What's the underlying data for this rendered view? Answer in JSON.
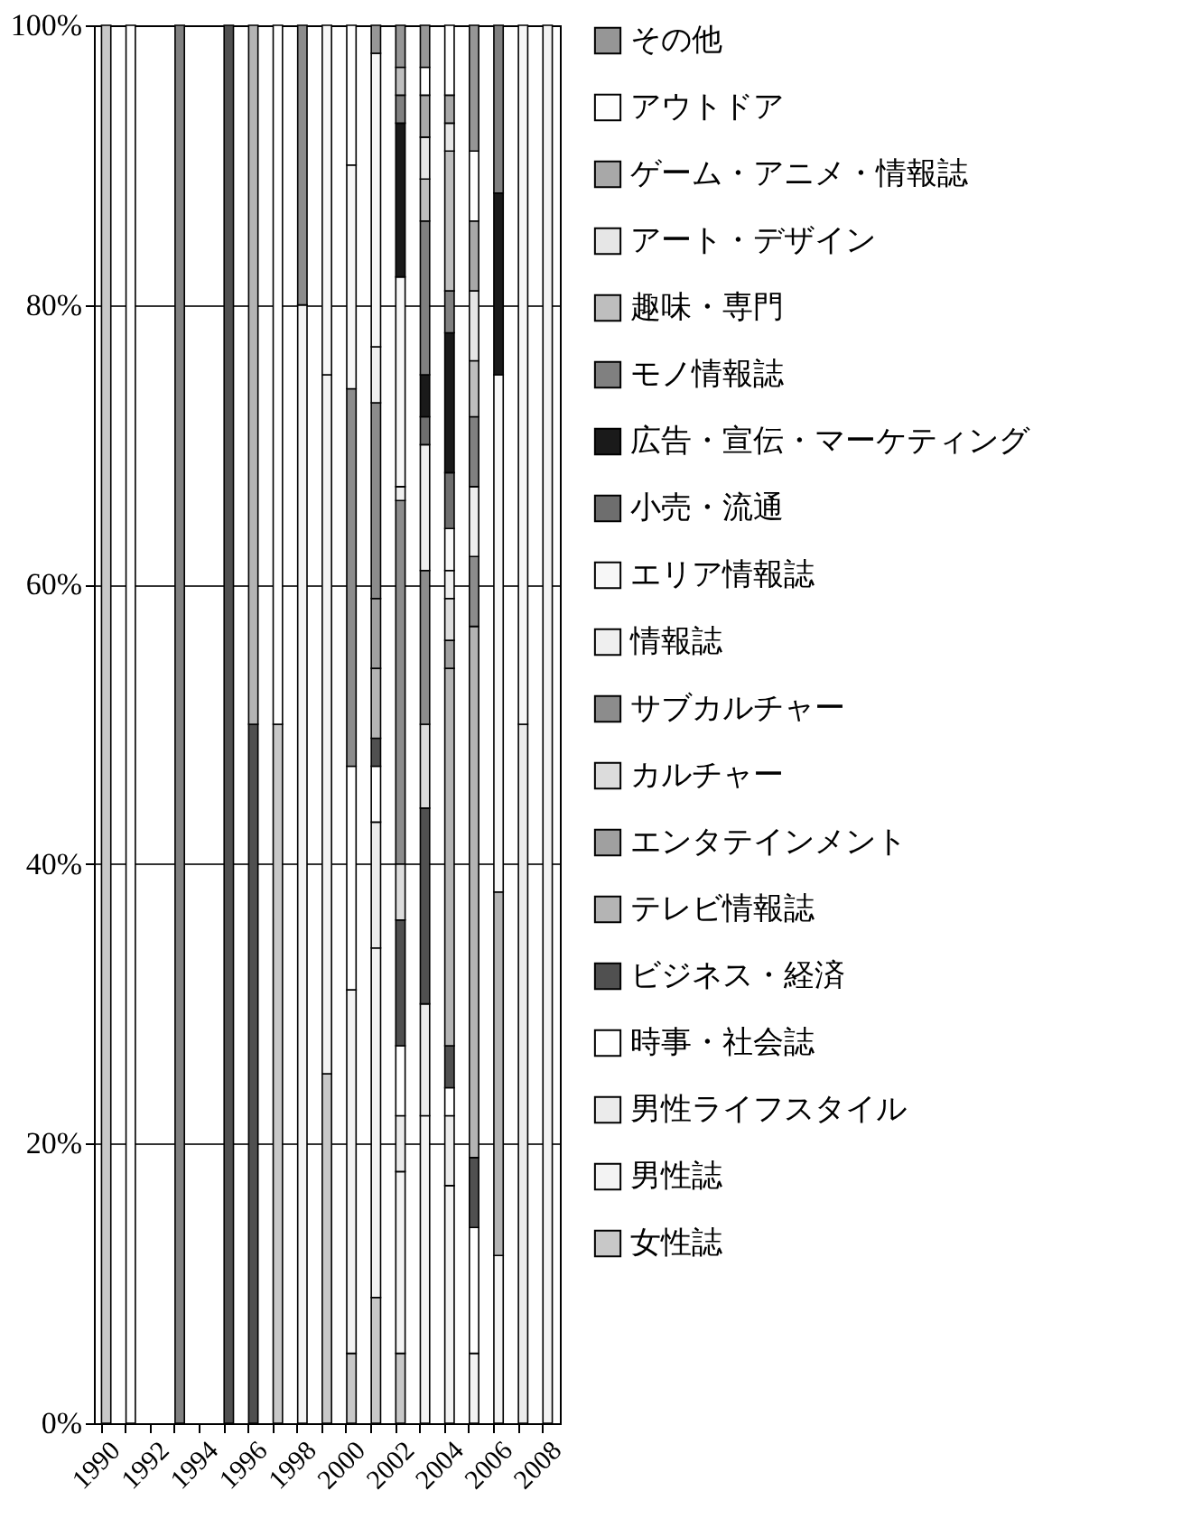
{
  "chart_data": {
    "type": "bar",
    "stacked": true,
    "categories": [
      "1990",
      null,
      "1992",
      null,
      "1994",
      null,
      "1996",
      null,
      "1998",
      null,
      "2000",
      null,
      "2002",
      null,
      "2004",
      null,
      "2006",
      null,
      "2008"
    ],
    "ylim": [
      0,
      100
    ],
    "yticks": [
      {
        "value": 0,
        "label": "0%"
      },
      {
        "value": 20,
        "label": "20%"
      },
      {
        "value": 40,
        "label": "40%"
      },
      {
        "value": 60,
        "label": "60%"
      },
      {
        "value": 80,
        "label": "80%"
      },
      {
        "value": 100,
        "label": "100%"
      }
    ],
    "grid": "y",
    "legend": "right",
    "series": [
      {
        "name": "女性誌",
        "color": "#c8c8c8",
        "values": [
          100,
          null,
          null,
          null,
          null,
          null,
          null,
          50,
          null,
          25,
          5,
          9,
          5,
          null,
          null,
          null,
          null,
          null,
          null
        ]
      },
      {
        "name": "男性誌",
        "color": "#f3f3f3",
        "values": [
          null,
          null,
          null,
          null,
          null,
          null,
          null,
          null,
          80,
          50,
          26,
          25,
          13,
          22,
          17,
          5,
          12,
          null,
          100
        ]
      },
      {
        "name": "男性ライフスタイル",
        "color": "#ebebeb",
        "values": [
          null,
          null,
          null,
          null,
          null,
          null,
          null,
          null,
          null,
          null,
          null,
          9,
          4,
          8,
          5,
          null,
          null,
          50,
          null
        ]
      },
      {
        "name": "時事・社会誌",
        "color": "#ffffff",
        "values": [
          null,
          100,
          null,
          null,
          null,
          null,
          null,
          50,
          null,
          null,
          16,
          4,
          5,
          null,
          2,
          9,
          null,
          null,
          null
        ]
      },
      {
        "name": "ビジネス・経済",
        "color": "#505050",
        "values": [
          null,
          null,
          null,
          null,
          null,
          100,
          50,
          null,
          null,
          null,
          null,
          2,
          9,
          14,
          3,
          5,
          null,
          null,
          null
        ]
      },
      {
        "name": "テレビ情報誌",
        "color": "#b4b4b4",
        "values": [
          null,
          null,
          null,
          null,
          null,
          null,
          50,
          null,
          null,
          null,
          null,
          5,
          null,
          null,
          27,
          38,
          26,
          null,
          null
        ]
      },
      {
        "name": "エンタテインメント",
        "color": "#a0a0a0",
        "values": [
          null,
          null,
          null,
          null,
          null,
          null,
          null,
          null,
          null,
          null,
          null,
          5,
          null,
          null,
          2,
          null,
          null,
          null,
          null
        ]
      },
      {
        "name": "カルチャー",
        "color": "#dcdcdc",
        "values": [
          null,
          null,
          null,
          null,
          null,
          null,
          null,
          null,
          null,
          null,
          null,
          null,
          4,
          6,
          3,
          null,
          null,
          null,
          null
        ]
      },
      {
        "name": "サブカルチャー",
        "color": "#8c8c8c",
        "values": [
          null,
          null,
          null,
          null,
          null,
          null,
          null,
          null,
          20,
          null,
          27,
          14,
          26,
          11,
          null,
          5,
          null,
          null,
          null
        ]
      },
      {
        "name": "情報誌",
        "color": "#efefef",
        "values": [
          null,
          null,
          null,
          null,
          null,
          null,
          null,
          null,
          null,
          null,
          null,
          4,
          1,
          9,
          2,
          5,
          null,
          null,
          null
        ]
      },
      {
        "name": "エリア情報誌",
        "color": "#f7f7f7",
        "values": [
          null,
          null,
          null,
          null,
          null,
          null,
          null,
          null,
          null,
          25,
          16,
          21,
          15,
          null,
          3,
          null,
          37,
          50,
          null
        ]
      },
      {
        "name": "小売・流通",
        "color": "#6e6e6e",
        "values": [
          null,
          null,
          null,
          null,
          null,
          null,
          null,
          null,
          null,
          null,
          null,
          null,
          null,
          2,
          4,
          null,
          null,
          null,
          null
        ]
      },
      {
        "name": "広告・宣伝・マーケティング",
        "color": "#1a1a1a",
        "values": [
          null,
          null,
          null,
          null,
          null,
          null,
          null,
          null,
          null,
          null,
          null,
          null,
          11,
          3,
          10,
          null,
          13,
          null,
          null
        ]
      },
      {
        "name": "モノ情報誌",
        "color": "#808080",
        "values": [
          null,
          null,
          null,
          100,
          null,
          null,
          null,
          null,
          null,
          null,
          null,
          null,
          2,
          11,
          3,
          5,
          12,
          null,
          null
        ]
      },
      {
        "name": "趣味・専門",
        "color": "#bebebe",
        "values": [
          null,
          null,
          null,
          null,
          null,
          null,
          null,
          null,
          null,
          null,
          null,
          null,
          2,
          3,
          10,
          4,
          null,
          null,
          null
        ]
      },
      {
        "name": "アート・デザイン",
        "color": "#e6e6e6",
        "values": [
          null,
          null,
          null,
          null,
          null,
          null,
          null,
          null,
          null,
          null,
          null,
          null,
          null,
          3,
          2,
          5,
          null,
          null,
          null
        ]
      },
      {
        "name": "ゲーム・アニメ・情報誌",
        "color": "#a8a8a8",
        "values": [
          null,
          null,
          null,
          null,
          null,
          null,
          null,
          null,
          null,
          null,
          null,
          null,
          null,
          3,
          2,
          5,
          null,
          null,
          null
        ]
      },
      {
        "name": "アウトドア",
        "color": "#fefefe",
        "values": [
          null,
          null,
          null,
          null,
          null,
          null,
          null,
          null,
          null,
          null,
          10,
          null,
          null,
          2,
          5,
          5,
          null,
          null,
          null
        ]
      },
      {
        "name": "その他",
        "color": "#969696",
        "values": [
          null,
          null,
          null,
          null,
          null,
          null,
          null,
          null,
          null,
          null,
          null,
          2,
          3,
          3,
          null,
          9,
          null,
          null,
          null
        ]
      }
    ]
  }
}
